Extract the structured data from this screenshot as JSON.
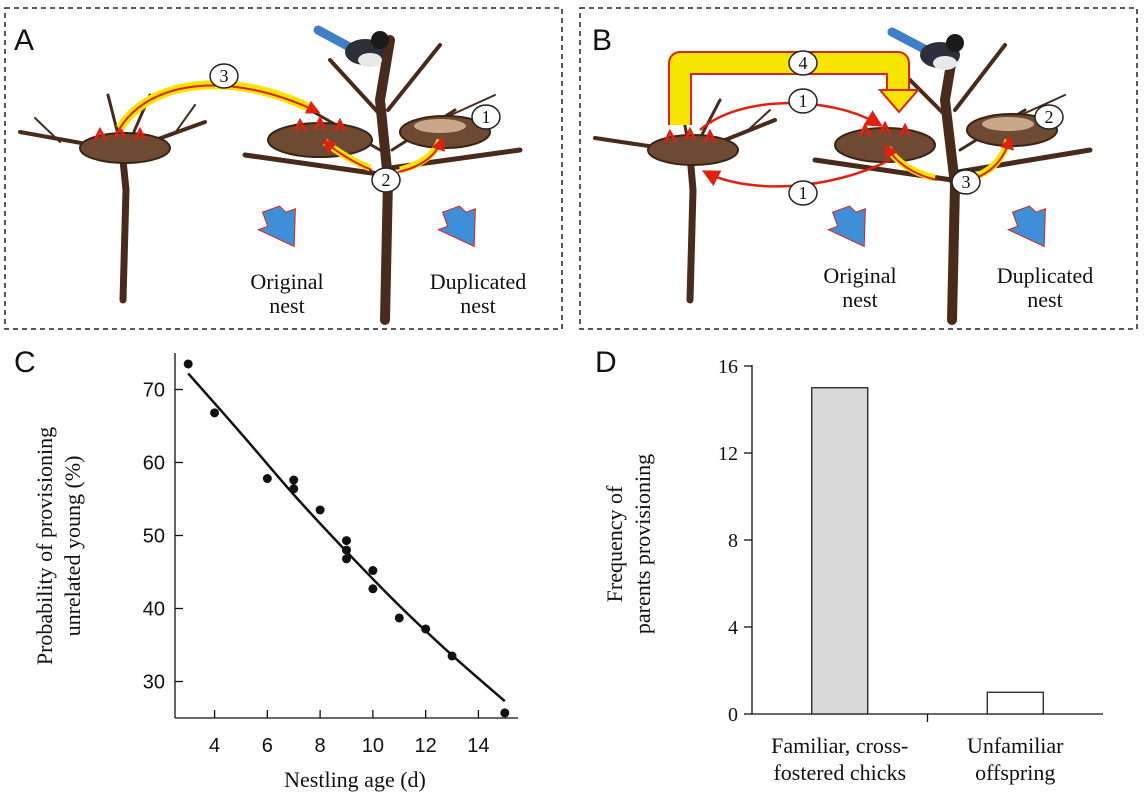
{
  "panel_a": {
    "letter": "A",
    "labels": {
      "original": [
        "Original",
        "nest"
      ],
      "duplicated": [
        "Duplicated",
        "nest"
      ]
    },
    "steps": [
      "1",
      "2",
      "3"
    ]
  },
  "panel_b": {
    "letter": "B",
    "labels": {
      "original": [
        "Original",
        "nest"
      ],
      "duplicated": [
        "Duplicated",
        "nest"
      ]
    },
    "steps": [
      "1",
      "1",
      "2",
      "3",
      "4"
    ]
  },
  "colors": {
    "tree": "#4a2a1a",
    "nest": "#6e4a33",
    "arrow_red": "#e02010",
    "arrow_yellow": "#f6e500",
    "arrow_blue": "#3f8fd8",
    "bar_fill": "#d9d9d9"
  },
  "chart_data": [
    {
      "panel": "C",
      "type": "scatter",
      "title": "",
      "xlabel": "Nestling age (d)",
      "ylabel": [
        "Probability of provisioning",
        "unrelated young (%)"
      ],
      "xlim": [
        2.5,
        15.5
      ],
      "ylim": [
        25,
        75
      ],
      "xticks": [
        4,
        6,
        8,
        10,
        12,
        14
      ],
      "yticks": [
        30,
        40,
        50,
        60,
        70
      ],
      "points": [
        {
          "x": 3,
          "y": 73.5
        },
        {
          "x": 4,
          "y": 66.8
        },
        {
          "x": 6,
          "y": 57.8
        },
        {
          "x": 7,
          "y": 57.6
        },
        {
          "x": 7,
          "y": 56.4
        },
        {
          "x": 8,
          "y": 53.5
        },
        {
          "x": 9,
          "y": 49.3
        },
        {
          "x": 9,
          "y": 48.0
        },
        {
          "x": 9,
          "y": 46.8
        },
        {
          "x": 10,
          "y": 45.2
        },
        {
          "x": 10,
          "y": 42.7
        },
        {
          "x": 11,
          "y": 38.7
        },
        {
          "x": 12,
          "y": 37.2
        },
        {
          "x": 13,
          "y": 33.5
        },
        {
          "x": 15,
          "y": 25.7
        }
      ],
      "fit": {
        "x": [
          3,
          5,
          7,
          9,
          11,
          13,
          15
        ],
        "y": [
          72.2,
          64.0,
          55.6,
          47.8,
          40.4,
          33.6,
          27.3
        ]
      }
    },
    {
      "panel": "D",
      "type": "bar",
      "title": "",
      "xlabel": "",
      "ylabel": [
        "Frequency of",
        "parents provisioning"
      ],
      "categories": [
        [
          "Familiar, cross-",
          "fostered chicks"
        ],
        [
          "Unfamiliar",
          "offspring"
        ]
      ],
      "values": [
        15,
        1
      ],
      "ylim": [
        0,
        16
      ],
      "yticks": [
        0,
        4,
        8,
        12,
        16
      ]
    }
  ]
}
